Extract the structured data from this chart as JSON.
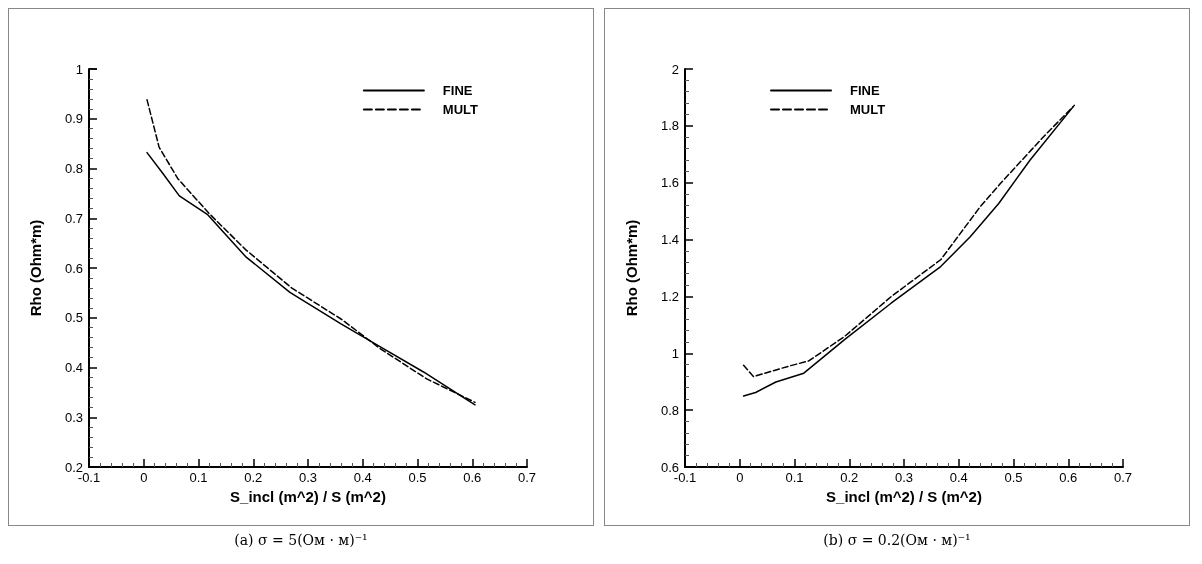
{
  "chart_data": [
    {
      "type": "line",
      "xlabel": "S_incl (m^2) / S (m^2)",
      "ylabel": "Rho (Ohm*m)",
      "annotations": [
        "(a) σ = 5(Ом · м)⁻¹"
      ],
      "xlim": [
        -0.1,
        0.7
      ],
      "xticks": [
        -0.1,
        0,
        0.1,
        0.2,
        0.3,
        0.4,
        0.5,
        0.6,
        0.7
      ],
      "ylim": [
        0.2,
        1
      ],
      "yticks": [
        0.2,
        0.3,
        0.4,
        0.5,
        0.6,
        0.7,
        0.8,
        0.9,
        1
      ],
      "grid": false,
      "legend": "top right",
      "marker": "none",
      "series": [
        {
          "name": "FINE",
          "color": "#000000",
          "line_style": "solid",
          "x": [
            0.006,
            0.035,
            0.065,
            0.116,
            0.186,
            0.267,
            0.361,
            0.433,
            0.511,
            0.605
          ],
          "values": [
            0.832,
            0.79,
            0.745,
            0.708,
            0.623,
            0.551,
            0.487,
            0.441,
            0.391,
            0.325
          ]
        },
        {
          "name": "MULT",
          "color": "#000000",
          "line_style": "dashed",
          "x": [
            0.006,
            0.028,
            0.062,
            0.119,
            0.186,
            0.27,
            0.361,
            0.433,
            0.517,
            0.605
          ],
          "values": [
            0.938,
            0.843,
            0.78,
            0.71,
            0.637,
            0.56,
            0.497,
            0.437,
            0.377,
            0.33
          ]
        }
      ]
    },
    {
      "type": "line",
      "xlabel": "S_incl (m^2) / S (m^2)",
      "ylabel": "Rho (Ohm*m)",
      "annotations": [
        "(b) σ = 0.2(Ом · м)⁻¹"
      ],
      "xlim": [
        -0.1,
        0.7
      ],
      "xticks": [
        -0.1,
        0,
        0.1,
        0.2,
        0.3,
        0.4,
        0.5,
        0.6,
        0.7
      ],
      "ylim": [
        0.6,
        2
      ],
      "yticks": [
        0.6,
        0.8,
        1,
        1.2,
        1.4,
        1.6,
        1.8,
        2
      ],
      "grid": false,
      "legend": "top left",
      "marker": "none",
      "series": [
        {
          "name": "FINE",
          "color": "#000000",
          "line_style": "solid",
          "x": [
            0.007,
            0.029,
            0.066,
            0.117,
            0.192,
            0.277,
            0.367,
            0.421,
            0.473,
            0.53,
            0.611
          ],
          "values": [
            0.85,
            0.862,
            0.899,
            0.93,
            1.049,
            1.177,
            1.305,
            1.41,
            1.527,
            1.679,
            1.872
          ]
        },
        {
          "name": "MULT",
          "color": "#000000",
          "line_style": "dashed",
          "x": [
            0.007,
            0.025,
            0.09,
            0.126,
            0.192,
            0.277,
            0.367,
            0.439,
            0.476,
            0.554,
            0.608
          ],
          "values": [
            0.958,
            0.918,
            0.955,
            0.973,
            1.06,
            1.2,
            1.329,
            1.515,
            1.597,
            1.76,
            1.866
          ]
        }
      ]
    }
  ]
}
